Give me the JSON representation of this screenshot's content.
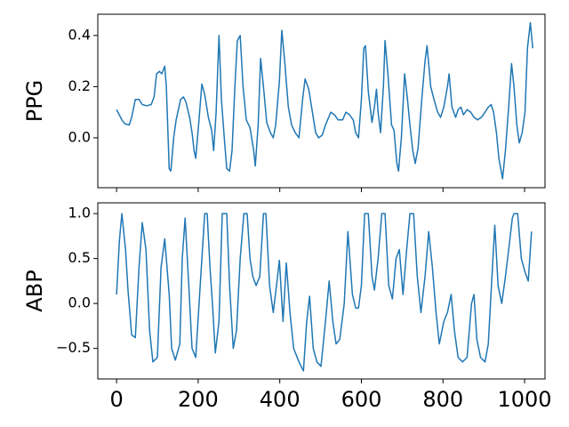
{
  "chart_data": [
    {
      "type": "line",
      "ylabel": "PPG",
      "color": "#1f77b4",
      "show_xtick_labels": false,
      "x": [
        0,
        13,
        20,
        31,
        37,
        46,
        55,
        63,
        74,
        85,
        92,
        98,
        105,
        111,
        118,
        122,
        129,
        133,
        140,
        146,
        157,
        164,
        170,
        179,
        185,
        190,
        194,
        201,
        209,
        216,
        225,
        233,
        238,
        244,
        251,
        257,
        264,
        270,
        277,
        283,
        290,
        296,
        303,
        310,
        318,
        327,
        336,
        340,
        347,
        353,
        360,
        368,
        377,
        384,
        390,
        399,
        405,
        412,
        421,
        429,
        438,
        447,
        456,
        462,
        471,
        480,
        488,
        495,
        504,
        512,
        525,
        534,
        543,
        554,
        562,
        571,
        580,
        586,
        593,
        600,
        606,
        610,
        617,
        626,
        632,
        637,
        641,
        647,
        654,
        658,
        665,
        674,
        680,
        687,
        691,
        698,
        706,
        713,
        719,
        726,
        732,
        739,
        748,
        756,
        761,
        770,
        778,
        787,
        794,
        802,
        811,
        815,
        822,
        831,
        837,
        844,
        850,
        859,
        868,
        876,
        885,
        894,
        903,
        911,
        918,
        924,
        931,
        937,
        946,
        953,
        961,
        968,
        974,
        981,
        987,
        994,
        1001,
        1007,
        1014,
        1020
      ],
      "values": [
        0.11,
        0.07,
        0.055,
        0.05,
        0.08,
        0.15,
        0.15,
        0.13,
        0.125,
        0.13,
        0.16,
        0.25,
        0.26,
        0.25,
        0.28,
        0.2,
        -0.12,
        -0.13,
        0.0,
        0.07,
        0.15,
        0.16,
        0.14,
        0.08,
        0.02,
        -0.05,
        -0.08,
        0.05,
        0.21,
        0.17,
        0.08,
        0.03,
        -0.05,
        0.1,
        0.4,
        0.15,
        0.0,
        -0.12,
        -0.13,
        -0.05,
        0.2,
        0.38,
        0.4,
        0.2,
        0.07,
        0.04,
        -0.05,
        -0.11,
        0.05,
        0.31,
        0.2,
        0.06,
        0.02,
        0.0,
        0.05,
        0.22,
        0.42,
        0.3,
        0.12,
        0.05,
        0.02,
        0.0,
        0.15,
        0.23,
        0.19,
        0.1,
        0.02,
        0.0,
        0.01,
        0.05,
        0.1,
        0.09,
        0.07,
        0.07,
        0.1,
        0.09,
        0.07,
        0.02,
        0.0,
        0.15,
        0.35,
        0.36,
        0.18,
        0.06,
        0.12,
        0.19,
        0.1,
        0.02,
        0.2,
        0.38,
        0.25,
        0.05,
        0.03,
        -0.1,
        -0.13,
        0.0,
        0.25,
        0.15,
        0.05,
        -0.05,
        -0.1,
        -0.04,
        0.15,
        0.3,
        0.36,
        0.2,
        0.15,
        0.1,
        0.08,
        0.12,
        0.2,
        0.25,
        0.12,
        0.08,
        0.11,
        0.12,
        0.09,
        0.11,
        0.1,
        0.08,
        0.07,
        0.08,
        0.1,
        0.12,
        0.13,
        0.1,
        0.02,
        -0.08,
        -0.16,
        -0.05,
        0.12,
        0.29,
        0.2,
        0.05,
        -0.02,
        0.02,
        0.1,
        0.35,
        0.45,
        0.35
      ],
      "xlim": [
        -46,
        1050
      ],
      "xticks": [
        0,
        200,
        400,
        600,
        800,
        1000
      ],
      "ylim": [
        -0.195,
        0.483
      ],
      "yticks": [
        {
          "value": 0,
          "label": "0.0"
        },
        0.2,
        0.4
      ]
    },
    {
      "type": "line",
      "ylabel": "ABP",
      "color": "#1f77b4",
      "show_xtick_labels": true,
      "x": [
        0,
        7,
        13,
        22,
        28,
        37,
        46,
        55,
        63,
        72,
        81,
        89,
        100,
        109,
        118,
        129,
        135,
        144,
        155,
        161,
        168,
        177,
        185,
        194,
        205,
        216,
        222,
        229,
        235,
        242,
        251,
        259,
        270,
        277,
        286,
        294,
        303,
        312,
        320,
        327,
        334,
        342,
        351,
        360,
        366,
        375,
        384,
        392,
        399,
        408,
        416,
        425,
        434,
        447,
        458,
        466,
        473,
        482,
        491,
        501,
        512,
        521,
        530,
        538,
        547,
        558,
        567,
        578,
        586,
        593,
        600,
        608,
        617,
        626,
        632,
        641,
        650,
        658,
        667,
        676,
        685,
        693,
        702,
        711,
        719,
        728,
        737,
        746,
        756,
        765,
        774,
        783,
        791,
        802,
        811,
        820,
        828,
        837,
        848,
        859,
        870,
        876,
        883,
        892,
        903,
        911,
        920,
        927,
        935,
        944,
        953,
        961,
        970,
        974,
        983,
        992,
        1001,
        1009,
        1017
      ],
      "values": [
        0.1,
        0.7,
        1.0,
        0.6,
        0.15,
        -0.35,
        -0.38,
        0.4,
        0.9,
        0.6,
        -0.3,
        -0.65,
        -0.6,
        0.4,
        0.72,
        0.1,
        -0.5,
        -0.63,
        -0.45,
        0.5,
        0.95,
        0.2,
        -0.5,
        -0.6,
        0.2,
        1.0,
        1.0,
        0.4,
        0.0,
        -0.55,
        -0.2,
        1.0,
        1.0,
        0.2,
        -0.5,
        -0.3,
        0.5,
        1.0,
        1.0,
        0.5,
        0.3,
        0.2,
        0.3,
        1.0,
        1.0,
        0.2,
        -0.1,
        0.2,
        0.48,
        -0.2,
        0.45,
        -0.1,
        -0.5,
        -0.65,
        -0.75,
        -0.2,
        0.08,
        -0.5,
        -0.65,
        -0.7,
        -0.2,
        0.25,
        -0.2,
        -0.45,
        -0.4,
        0.0,
        0.8,
        0.1,
        -0.05,
        -0.05,
        0.2,
        1.0,
        1.0,
        0.3,
        0.15,
        0.5,
        1.0,
        1.0,
        0.2,
        0.05,
        0.5,
        0.6,
        0.1,
        0.6,
        1.0,
        1.0,
        0.3,
        -0.1,
        0.3,
        0.8,
        0.4,
        -0.1,
        -0.45,
        -0.2,
        -0.1,
        0.1,
        -0.3,
        -0.6,
        -0.65,
        -0.6,
        0.0,
        0.1,
        -0.4,
        -0.6,
        -0.65,
        -0.45,
        0.3,
        0.87,
        0.2,
        0.0,
        0.3,
        0.6,
        0.95,
        1.0,
        1.0,
        0.5,
        0.35,
        0.25,
        0.8
      ],
      "xlim": [
        -46,
        1050
      ],
      "xticks": [
        0,
        200,
        400,
        600,
        800,
        1000
      ],
      "ylim": [
        -0.84,
        1.12
      ],
      "yticks": [
        {
          "value": -0.5,
          "label": "−0.5"
        },
        {
          "value": 0,
          "label": "0.0"
        },
        0.5,
        {
          "value": 1,
          "label": "1.0"
        }
      ]
    }
  ]
}
